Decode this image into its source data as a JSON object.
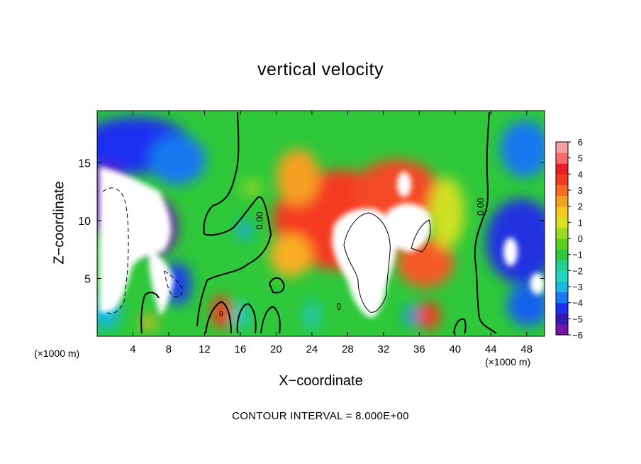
{
  "chart_data": {
    "type": "heatmap",
    "title": "vertical velocity",
    "xlabel": "X−coordinate",
    "ylabel": "Z−coordinate",
    "x_unit_left": "(×1000 m)",
    "x_unit_right": "(×1000 m)",
    "xlim": [
      0,
      50
    ],
    "ylim": [
      0,
      19.5
    ],
    "x_ticks": [
      4,
      8,
      12,
      16,
      20,
      24,
      28,
      32,
      36,
      40,
      44,
      48
    ],
    "x_tick_labels": [
      "4",
      "8",
      "12",
      "16",
      "20",
      "24",
      "28",
      "32",
      "36",
      "40",
      "44",
      "48"
    ],
    "y_ticks": [
      5,
      10,
      15
    ],
    "y_tick_labels": [
      "5",
      "10",
      "15"
    ],
    "colorbar": {
      "min": -6,
      "max": 6,
      "ticks": [
        6,
        5,
        4,
        3,
        2,
        1,
        0,
        -1,
        -2,
        -3,
        -4,
        -5,
        -6
      ],
      "tick_labels": [
        "6",
        "5",
        "4",
        "3",
        "2",
        "1",
        "0",
        "−1",
        "−2",
        "−3",
        "−4",
        "−5",
        "−6"
      ]
    },
    "contour_labels": [
      {
        "text": "0.00",
        "x": 18.5,
        "z": 10.0
      },
      {
        "text": "0.00",
        "x": 43.2,
        "z": 11.2
      }
    ],
    "field_features": [
      {
        "x": 1.5,
        "z": 14.0,
        "w": -4.5
      },
      {
        "x": 5.0,
        "z": 14.8,
        "w": -5.0
      },
      {
        "x": 9.0,
        "z": 14.5,
        "w": -4.0
      },
      {
        "x": 3.0,
        "z": 8.0,
        "w": -12.0
      },
      {
        "x": 7.0,
        "z": 6.0,
        "w": -8.0
      },
      {
        "x": 13.5,
        "z": 2.0,
        "w": 6.0
      },
      {
        "x": 27.0,
        "z": 11.0,
        "w": 4.5
      },
      {
        "x": 31.0,
        "z": 7.5,
        "w": 14.0
      },
      {
        "x": 34.5,
        "z": 13.5,
        "w": 6.0
      },
      {
        "x": 36.5,
        "z": 2.0,
        "w": 5.5
      },
      {
        "x": 47.0,
        "z": 8.0,
        "w": -5.0
      },
      {
        "x": 47.5,
        "z": 16.0,
        "w": -3.5
      }
    ],
    "footer": "CONTOUR INTERVAL = 8.000E+00"
  }
}
